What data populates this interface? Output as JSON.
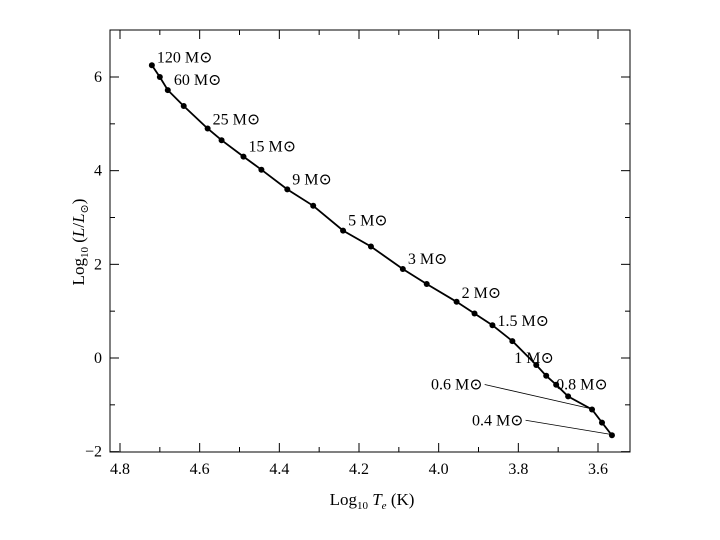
{
  "chart_data": {
    "type": "line",
    "title": "",
    "xlabel": "Log10 Te (K)",
    "ylabel": "Log10 (L/L⊙)",
    "xlim": [
      4.8,
      3.5
    ],
    "ylim": [
      -2,
      7
    ],
    "x_reversed": true,
    "grid": false,
    "x_ticks": [
      4.8,
      4.6,
      4.4,
      4.2,
      4.0,
      3.8,
      3.6
    ],
    "x_tick_labels": [
      "4.8",
      "4.6",
      "4.4",
      "4.2",
      "4.0",
      "3.8",
      "3.6"
    ],
    "y_ticks": [
      -2,
      0,
      2,
      4,
      6
    ],
    "y_tick_labels": [
      "−2",
      "0",
      "2",
      "4",
      "6"
    ],
    "series": [
      {
        "points": [
          {
            "x": 4.72,
            "y": 6.25
          },
          {
            "x": 4.7,
            "y": 6.0
          },
          {
            "x": 4.68,
            "y": 5.72
          },
          {
            "x": 4.64,
            "y": 5.38
          },
          {
            "x": 4.58,
            "y": 4.9
          },
          {
            "x": 4.545,
            "y": 4.65
          },
          {
            "x": 4.49,
            "y": 4.3
          },
          {
            "x": 4.445,
            "y": 4.02
          },
          {
            "x": 4.38,
            "y": 3.6
          },
          {
            "x": 4.315,
            "y": 3.25
          },
          {
            "x": 4.24,
            "y": 2.72
          },
          {
            "x": 4.17,
            "y": 2.38
          },
          {
            "x": 4.09,
            "y": 1.9
          },
          {
            "x": 4.03,
            "y": 1.58
          },
          {
            "x": 3.955,
            "y": 1.2
          },
          {
            "x": 3.91,
            "y": 0.95
          },
          {
            "x": 3.865,
            "y": 0.7
          },
          {
            "x": 3.815,
            "y": 0.36
          },
          {
            "x": 3.755,
            "y": -0.15
          },
          {
            "x": 3.73,
            "y": -0.38
          },
          {
            "x": 3.705,
            "y": -0.57
          },
          {
            "x": 3.675,
            "y": -0.82
          },
          {
            "x": 3.615,
            "y": -1.1
          },
          {
            "x": 3.59,
            "y": -1.38
          },
          {
            "x": 3.565,
            "y": -1.65
          }
        ]
      }
    ],
    "annotations": [
      {
        "label": "120 M⊙",
        "x": 4.72,
        "y": 6.25
      },
      {
        "label": "60 M⊙",
        "x": 4.7,
        "y": 6.0
      },
      {
        "label": "25 M⊙",
        "x": 4.58,
        "y": 4.9
      },
      {
        "label": "15 M⊙",
        "x": 4.49,
        "y": 4.3
      },
      {
        "label": "9 M⊙",
        "x": 4.38,
        "y": 3.6
      },
      {
        "label": "5 M⊙",
        "x": 4.24,
        "y": 2.72
      },
      {
        "label": "3 M⊙",
        "x": 4.09,
        "y": 1.9
      },
      {
        "label": "2 M⊙",
        "x": 3.955,
        "y": 1.2
      },
      {
        "label": "1.5 M⊙",
        "x": 3.865,
        "y": 0.7
      },
      {
        "label": "1 M⊙",
        "x": 3.755,
        "y": -0.15
      },
      {
        "label": "0.8 M⊙",
        "x": 3.675,
        "y": -0.82
      },
      {
        "label": "0.6 M⊙",
        "x": 3.615,
        "y": -1.1
      },
      {
        "label": "0.4 M⊙",
        "x": 3.565,
        "y": -1.65
      }
    ]
  }
}
